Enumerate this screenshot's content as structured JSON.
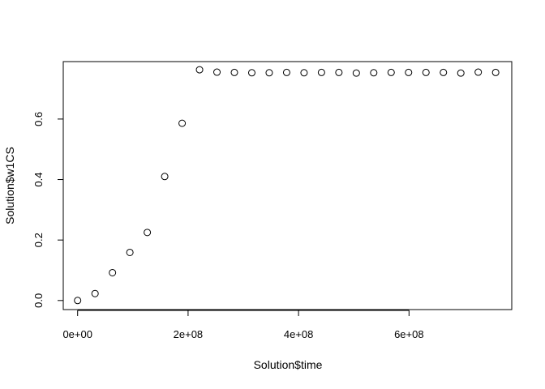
{
  "chart_data": {
    "type": "scatter",
    "title": "",
    "xlabel": "Solution$time",
    "ylabel": "Solution$w1CS",
    "x_ticks": [
      0,
      200000000,
      400000000,
      600000000
    ],
    "x_tick_labels": [
      "0e+00",
      "2e+08",
      "4e+08",
      "6e+08"
    ],
    "y_ticks": [
      0.0,
      0.2,
      0.4,
      0.6
    ],
    "y_tick_labels": [
      "0.0",
      "0.2",
      "0.4",
      "0.6"
    ],
    "xlim": [
      -26000000,
      786000000
    ],
    "ylim": [
      -0.03,
      0.79
    ],
    "grid": false,
    "legend": "none",
    "marker": "open-circle",
    "points": [
      {
        "x": 0,
        "y": 0.0
      },
      {
        "x": 31536000,
        "y": 0.023
      },
      {
        "x": 63072000,
        "y": 0.092
      },
      {
        "x": 94608000,
        "y": 0.159
      },
      {
        "x": 126144000,
        "y": 0.225
      },
      {
        "x": 157680000,
        "y": 0.41
      },
      {
        "x": 189216000,
        "y": 0.586
      },
      {
        "x": 220752000,
        "y": 0.763
      },
      {
        "x": 252288000,
        "y": 0.755
      },
      {
        "x": 283824000,
        "y": 0.754
      },
      {
        "x": 315360000,
        "y": 0.753
      },
      {
        "x": 346896000,
        "y": 0.753
      },
      {
        "x": 378432000,
        "y": 0.754
      },
      {
        "x": 409968000,
        "y": 0.753
      },
      {
        "x": 441504000,
        "y": 0.754
      },
      {
        "x": 473040000,
        "y": 0.754
      },
      {
        "x": 504576000,
        "y": 0.752
      },
      {
        "x": 536112000,
        "y": 0.753
      },
      {
        "x": 567648000,
        "y": 0.754
      },
      {
        "x": 599184000,
        "y": 0.754
      },
      {
        "x": 630720000,
        "y": 0.754
      },
      {
        "x": 662256000,
        "y": 0.754
      },
      {
        "x": 693792000,
        "y": 0.752
      },
      {
        "x": 725328000,
        "y": 0.755
      },
      {
        "x": 756864000,
        "y": 0.754
      }
    ]
  }
}
